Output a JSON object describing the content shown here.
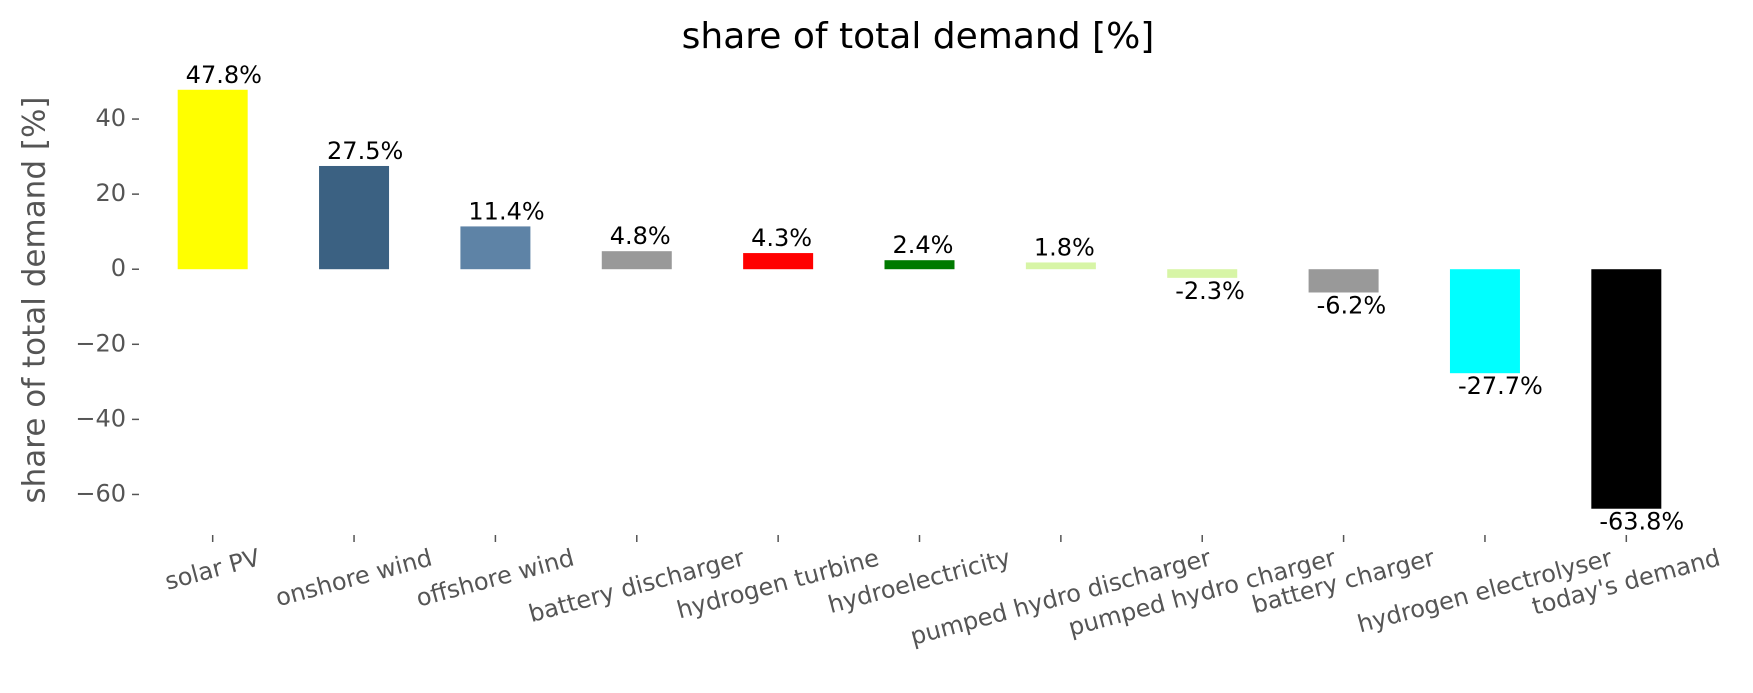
{
  "chart_data": {
    "type": "bar",
    "title": "share of total demand [%]",
    "y_label": "share of total demand [%]",
    "categories": [
      "solar PV",
      "onshore wind",
      "offshore wind",
      "battery discharger",
      "hydrogen turbine",
      "hydroelectricity",
      "pumped hydro discharger",
      "pumped hydro charger",
      "battery charger",
      "hydrogen electrolyser",
      "today's demand"
    ],
    "values": [
      47.8,
      27.5,
      11.4,
      4.8,
      4.3,
      2.4,
      1.8,
      -2.3,
      -6.2,
      -27.7,
      -63.8
    ],
    "value_labels": [
      "47.8%",
      "27.5%",
      "11.4%",
      "4.8%",
      "4.3%",
      "2.4%",
      "1.8%",
      "-2.3%",
      "-6.2%",
      "-27.7%",
      "-63.8%"
    ],
    "colors": [
      "#ffff00",
      "#3b6182",
      "#5e83a6",
      "#999999",
      "#ff0000",
      "#007a00",
      "#d7f5a6",
      "#d7f5a6",
      "#999999",
      "#00ffff",
      "#000000"
    ],
    "ylim": [
      -70,
      52
    ],
    "yticks": [
      {
        "value": -60,
        "label": "−60"
      },
      {
        "value": -40,
        "label": "−40"
      },
      {
        "value": -20,
        "label": "−20"
      },
      0,
      20,
      40
    ],
    "grid": false
  }
}
